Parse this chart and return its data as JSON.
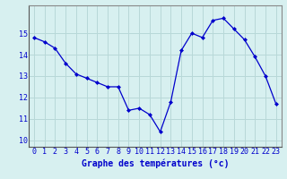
{
  "hours": [
    0,
    1,
    2,
    3,
    4,
    5,
    6,
    7,
    8,
    9,
    10,
    11,
    12,
    13,
    14,
    15,
    16,
    17,
    18,
    19,
    20,
    21,
    22,
    23
  ],
  "temps": [
    14.8,
    14.6,
    14.3,
    13.6,
    13.1,
    12.9,
    12.7,
    12.5,
    12.5,
    11.4,
    11.5,
    11.2,
    10.4,
    11.8,
    14.2,
    15.0,
    14.8,
    15.6,
    15.7,
    15.2,
    14.7,
    13.9,
    13.0,
    11.7
  ],
  "line_color": "#0000cc",
  "marker": "D",
  "marker_size": 2,
  "bg_color": "#d7f0f0",
  "grid_color": "#b8d8d8",
  "xlabel": "Graphe des températures (°c)",
  "xlabel_color": "#0000cc",
  "xlabel_fontsize": 7,
  "tick_color": "#0000cc",
  "tick_fontsize": 6,
  "yticks": [
    10,
    11,
    12,
    13,
    14,
    15
  ],
  "ylim": [
    9.7,
    16.3
  ],
  "xlim": [
    -0.5,
    23.5
  ],
  "ytick_labels": [
    "10",
    "11",
    "12",
    "13",
    "14",
    "15"
  ],
  "xtick_labels": [
    "0",
    "1",
    "2",
    "3",
    "4",
    "5",
    "6",
    "7",
    "8",
    "9",
    "10",
    "11",
    "12",
    "13",
    "14",
    "15",
    "16",
    "17",
    "18",
    "19",
    "20",
    "21",
    "22",
    "23"
  ]
}
